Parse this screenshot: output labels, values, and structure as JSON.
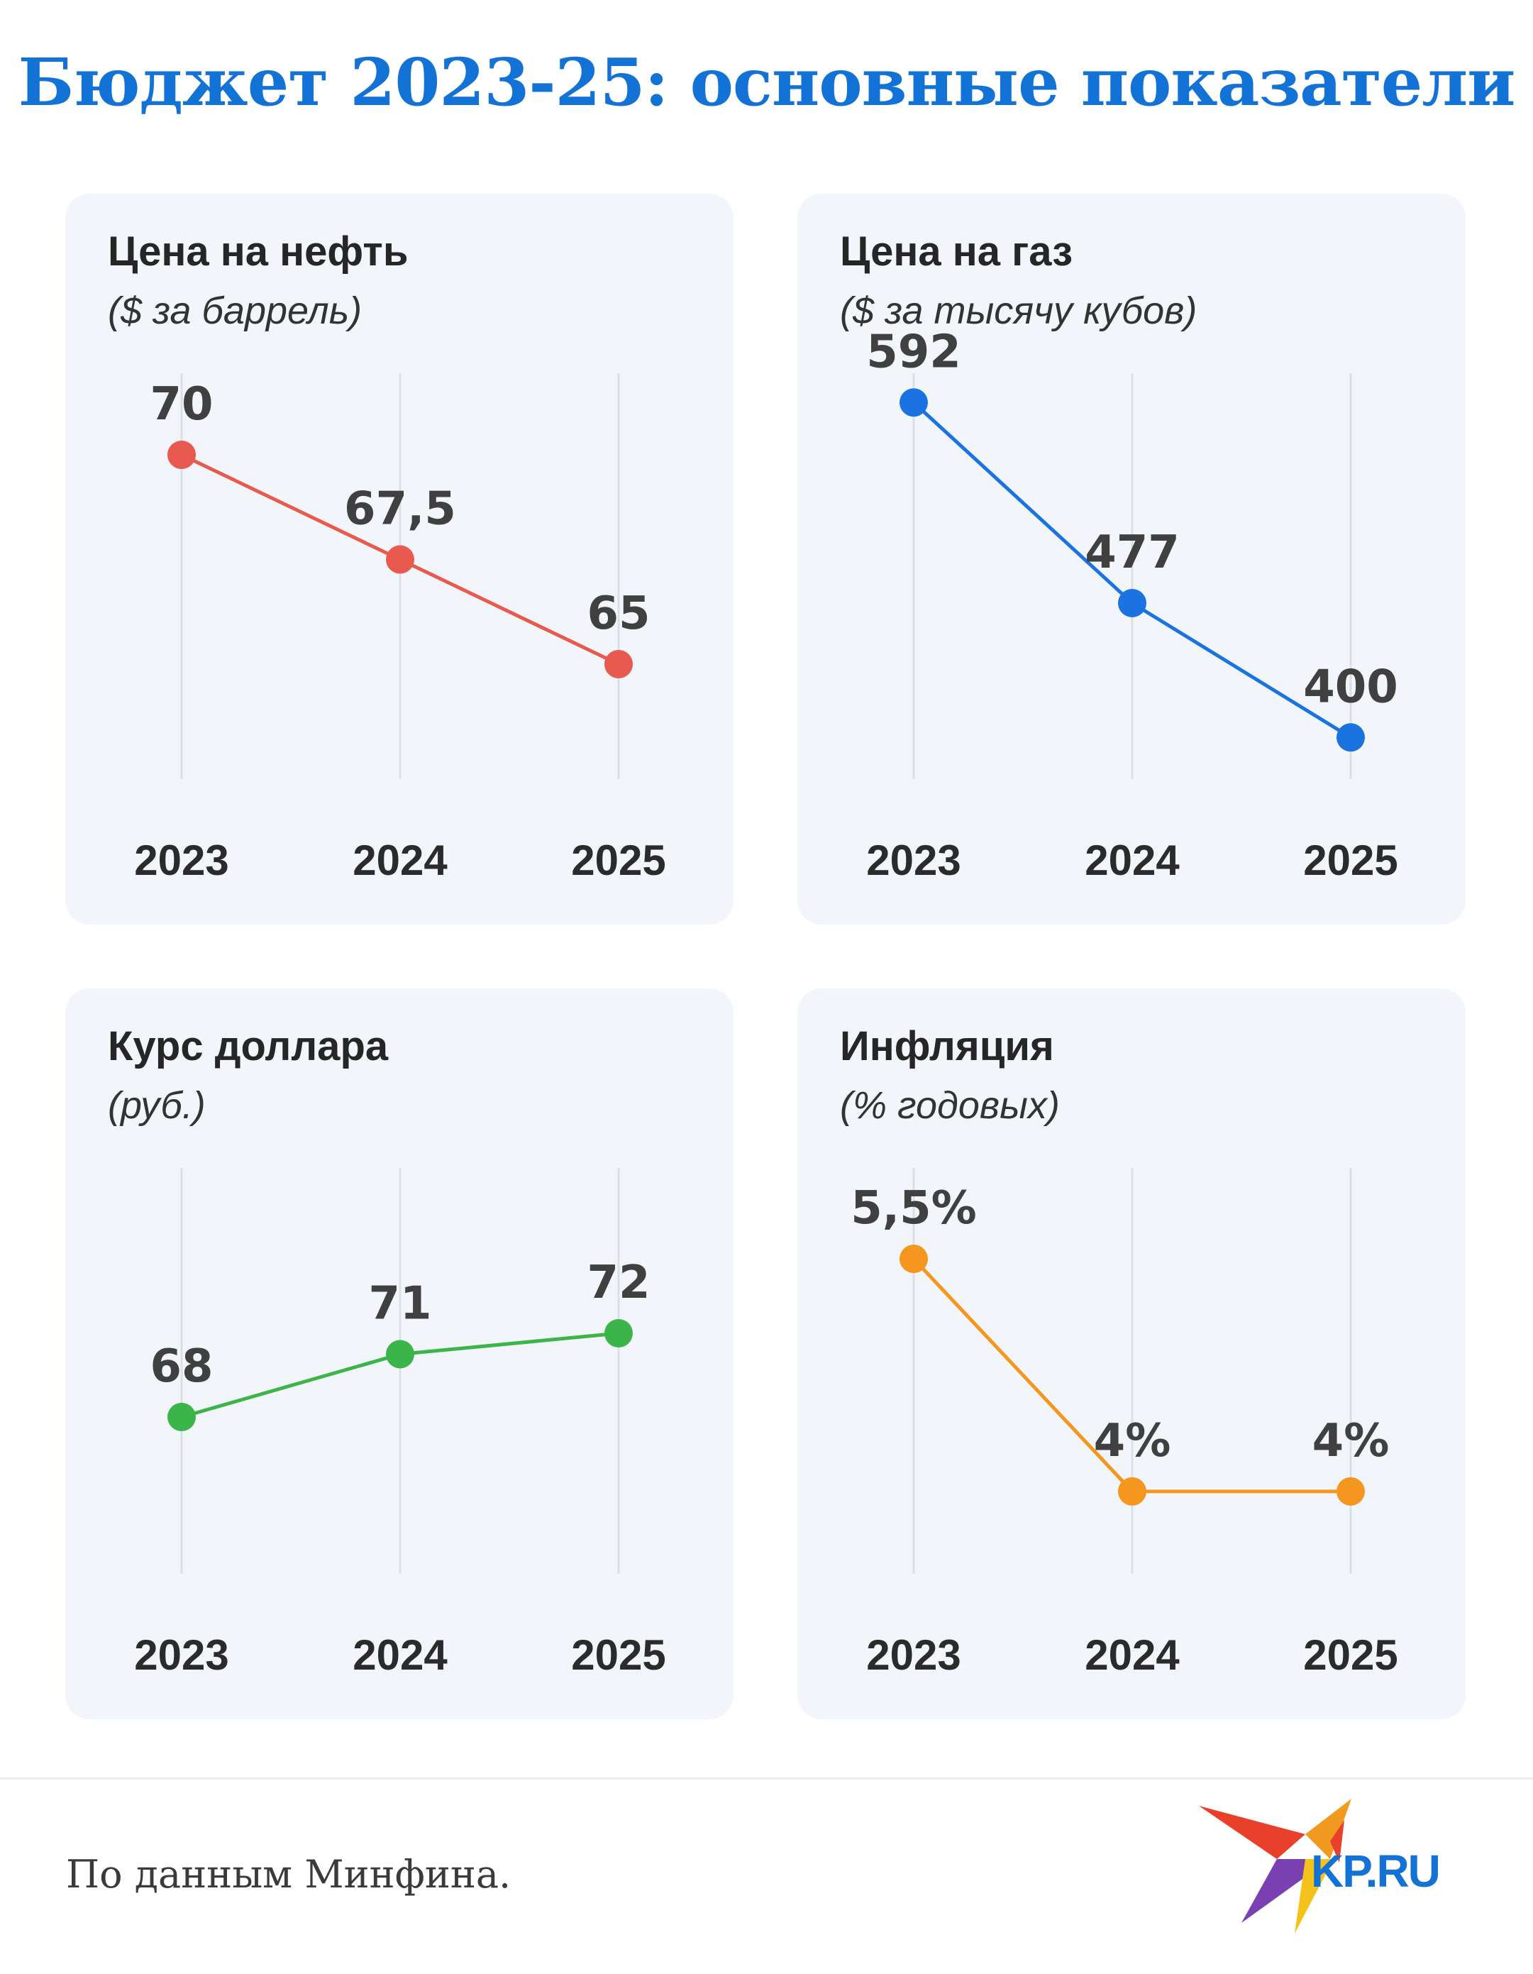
{
  "title": "Бюджет 2023-25: основные показатели",
  "source": "По данным Минфина.",
  "logo_text": "KP.RU",
  "chart_data": [
    {
      "type": "line",
      "title": "Цена на нефть",
      "subtitle": "($ за баррель)",
      "categories": [
        "2023",
        "2024",
        "2025"
      ],
      "values": [
        70,
        67.5,
        65
      ],
      "labels": [
        "70",
        "67,5",
        "65"
      ],
      "color": "#e85a4f",
      "ylim": [
        62,
        72
      ]
    },
    {
      "type": "line",
      "title": "Цена на газ",
      "subtitle": "($ за тысячу кубов)",
      "categories": [
        "2023",
        "2024",
        "2025"
      ],
      "values": [
        592,
        477,
        400
      ],
      "labels": [
        "592",
        "477",
        "400"
      ],
      "color": "#1a73e0",
      "ylim": [
        370,
        610
      ]
    },
    {
      "type": "line",
      "title": "Курс доллара",
      "subtitle": "(руб.)",
      "categories": [
        "2023",
        "2024",
        "2025"
      ],
      "values": [
        68,
        71,
        72
      ],
      "labels": [
        "68",
        "71",
        "72"
      ],
      "color": "#3bb54a",
      "ylim": [
        60,
        80
      ]
    },
    {
      "type": "line",
      "title": "Инфляция",
      "subtitle": "(% годовых)",
      "categories": [
        "2023",
        "2024",
        "2025"
      ],
      "values": [
        5.5,
        4,
        4
      ],
      "labels": [
        "5,5%",
        "4%",
        "4%"
      ],
      "color": "#f5961f",
      "ylim": [
        3.4,
        6.1
      ]
    }
  ]
}
